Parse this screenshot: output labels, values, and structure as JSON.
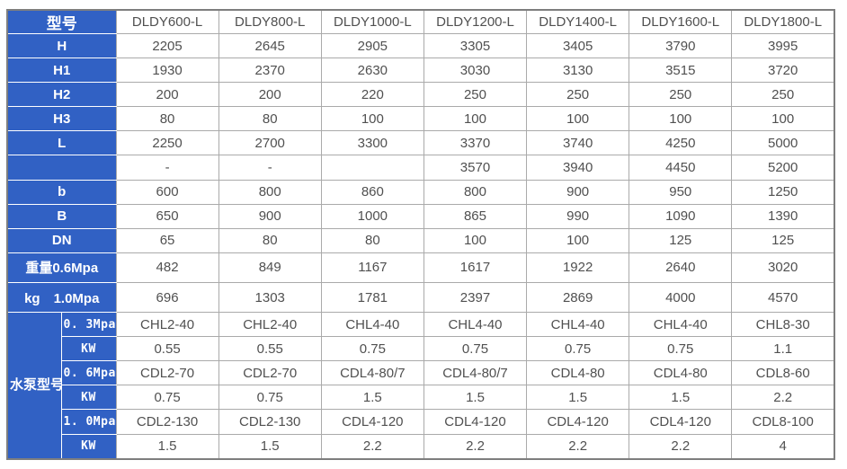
{
  "table": {
    "header": {
      "label": "型号",
      "models": [
        "DLDY600-L",
        "DLDY800-L",
        "DLDY1000-L",
        "DLDY1200-L",
        "DLDY1400-L",
        "DLDY1600-L",
        "DLDY1800-L"
      ]
    },
    "rows": [
      {
        "label": "H",
        "values": [
          "2205",
          "2645",
          "2905",
          "3305",
          "3405",
          "3790",
          "3995"
        ]
      },
      {
        "label": "H1",
        "values": [
          "1930",
          "2370",
          "2630",
          "3030",
          "3130",
          "3515",
          "3720"
        ]
      },
      {
        "label": "H2",
        "values": [
          "200",
          "200",
          "220",
          "250",
          "250",
          "250",
          "250"
        ]
      },
      {
        "label": "H3",
        "values": [
          "80",
          "80",
          "100",
          "100",
          "100",
          "100",
          "100"
        ]
      },
      {
        "label": "L",
        "values": [
          "2250",
          "2700",
          "3300",
          "3370",
          "3740",
          "4250",
          "5000"
        ]
      },
      {
        "label": "",
        "values": [
          "-",
          "-",
          "",
          "3570",
          "3940",
          "4450",
          "5200"
        ]
      },
      {
        "label": "b",
        "values": [
          "600",
          "800",
          "860",
          "800",
          "900",
          "950",
          "1250"
        ]
      },
      {
        "label": "B",
        "values": [
          "650",
          "900",
          "1000",
          "865",
          "990",
          "1090",
          "1390"
        ]
      },
      {
        "label": "DN",
        "values": [
          "65",
          "80",
          "80",
          "100",
          "100",
          "125",
          "125"
        ]
      },
      {
        "label": "重量0.6Mpa",
        "values": [
          "482",
          "849",
          "1167",
          "1617",
          "1922",
          "2640",
          "3020"
        ]
      },
      {
        "label": "kg　1.0Mpa",
        "values": [
          "696",
          "1303",
          "1781",
          "2397",
          "2869",
          "4000",
          "4570"
        ]
      }
    ],
    "pump_section": {
      "label": "水泵型号",
      "rows": [
        {
          "label": "0. 3Mpa",
          "values": [
            "CHL2-40",
            "CHL2-40",
            "CHL4-40",
            "CHL4-40",
            "CHL4-40",
            "CHL4-40",
            "CHL8-30"
          ]
        },
        {
          "label": "KW",
          "values": [
            "0.55",
            "0.55",
            "0.75",
            "0.75",
            "0.75",
            "0.75",
            "1.1"
          ]
        },
        {
          "label": "0. 6Mpa",
          "values": [
            "CDL2-70",
            "CDL2-70",
            "CDL4-80/7",
            "CDL4-80/7",
            "CDL4-80",
            "CDL4-80",
            "CDL8-60"
          ]
        },
        {
          "label": "KW",
          "values": [
            "0.75",
            "0.75",
            "1.5",
            "1.5",
            "1.5",
            "1.5",
            "2.2"
          ]
        },
        {
          "label": "1. 0Mpa",
          "values": [
            "CDL2-130",
            "CDL2-130",
            "CDL4-120",
            "CDL4-120",
            "CDL4-120",
            "CDL4-120",
            "CDL8-100"
          ]
        },
        {
          "label": "KW",
          "values": [
            "1.5",
            "1.5",
            "2.2",
            "2.2",
            "2.2",
            "2.2",
            "4"
          ]
        }
      ]
    },
    "colors": {
      "label_bg": "#3161c4",
      "label_text": "#ffffff",
      "data_text": "#505050",
      "grid": "#aaaaaa",
      "outer_border": "#7e7e7e"
    }
  }
}
